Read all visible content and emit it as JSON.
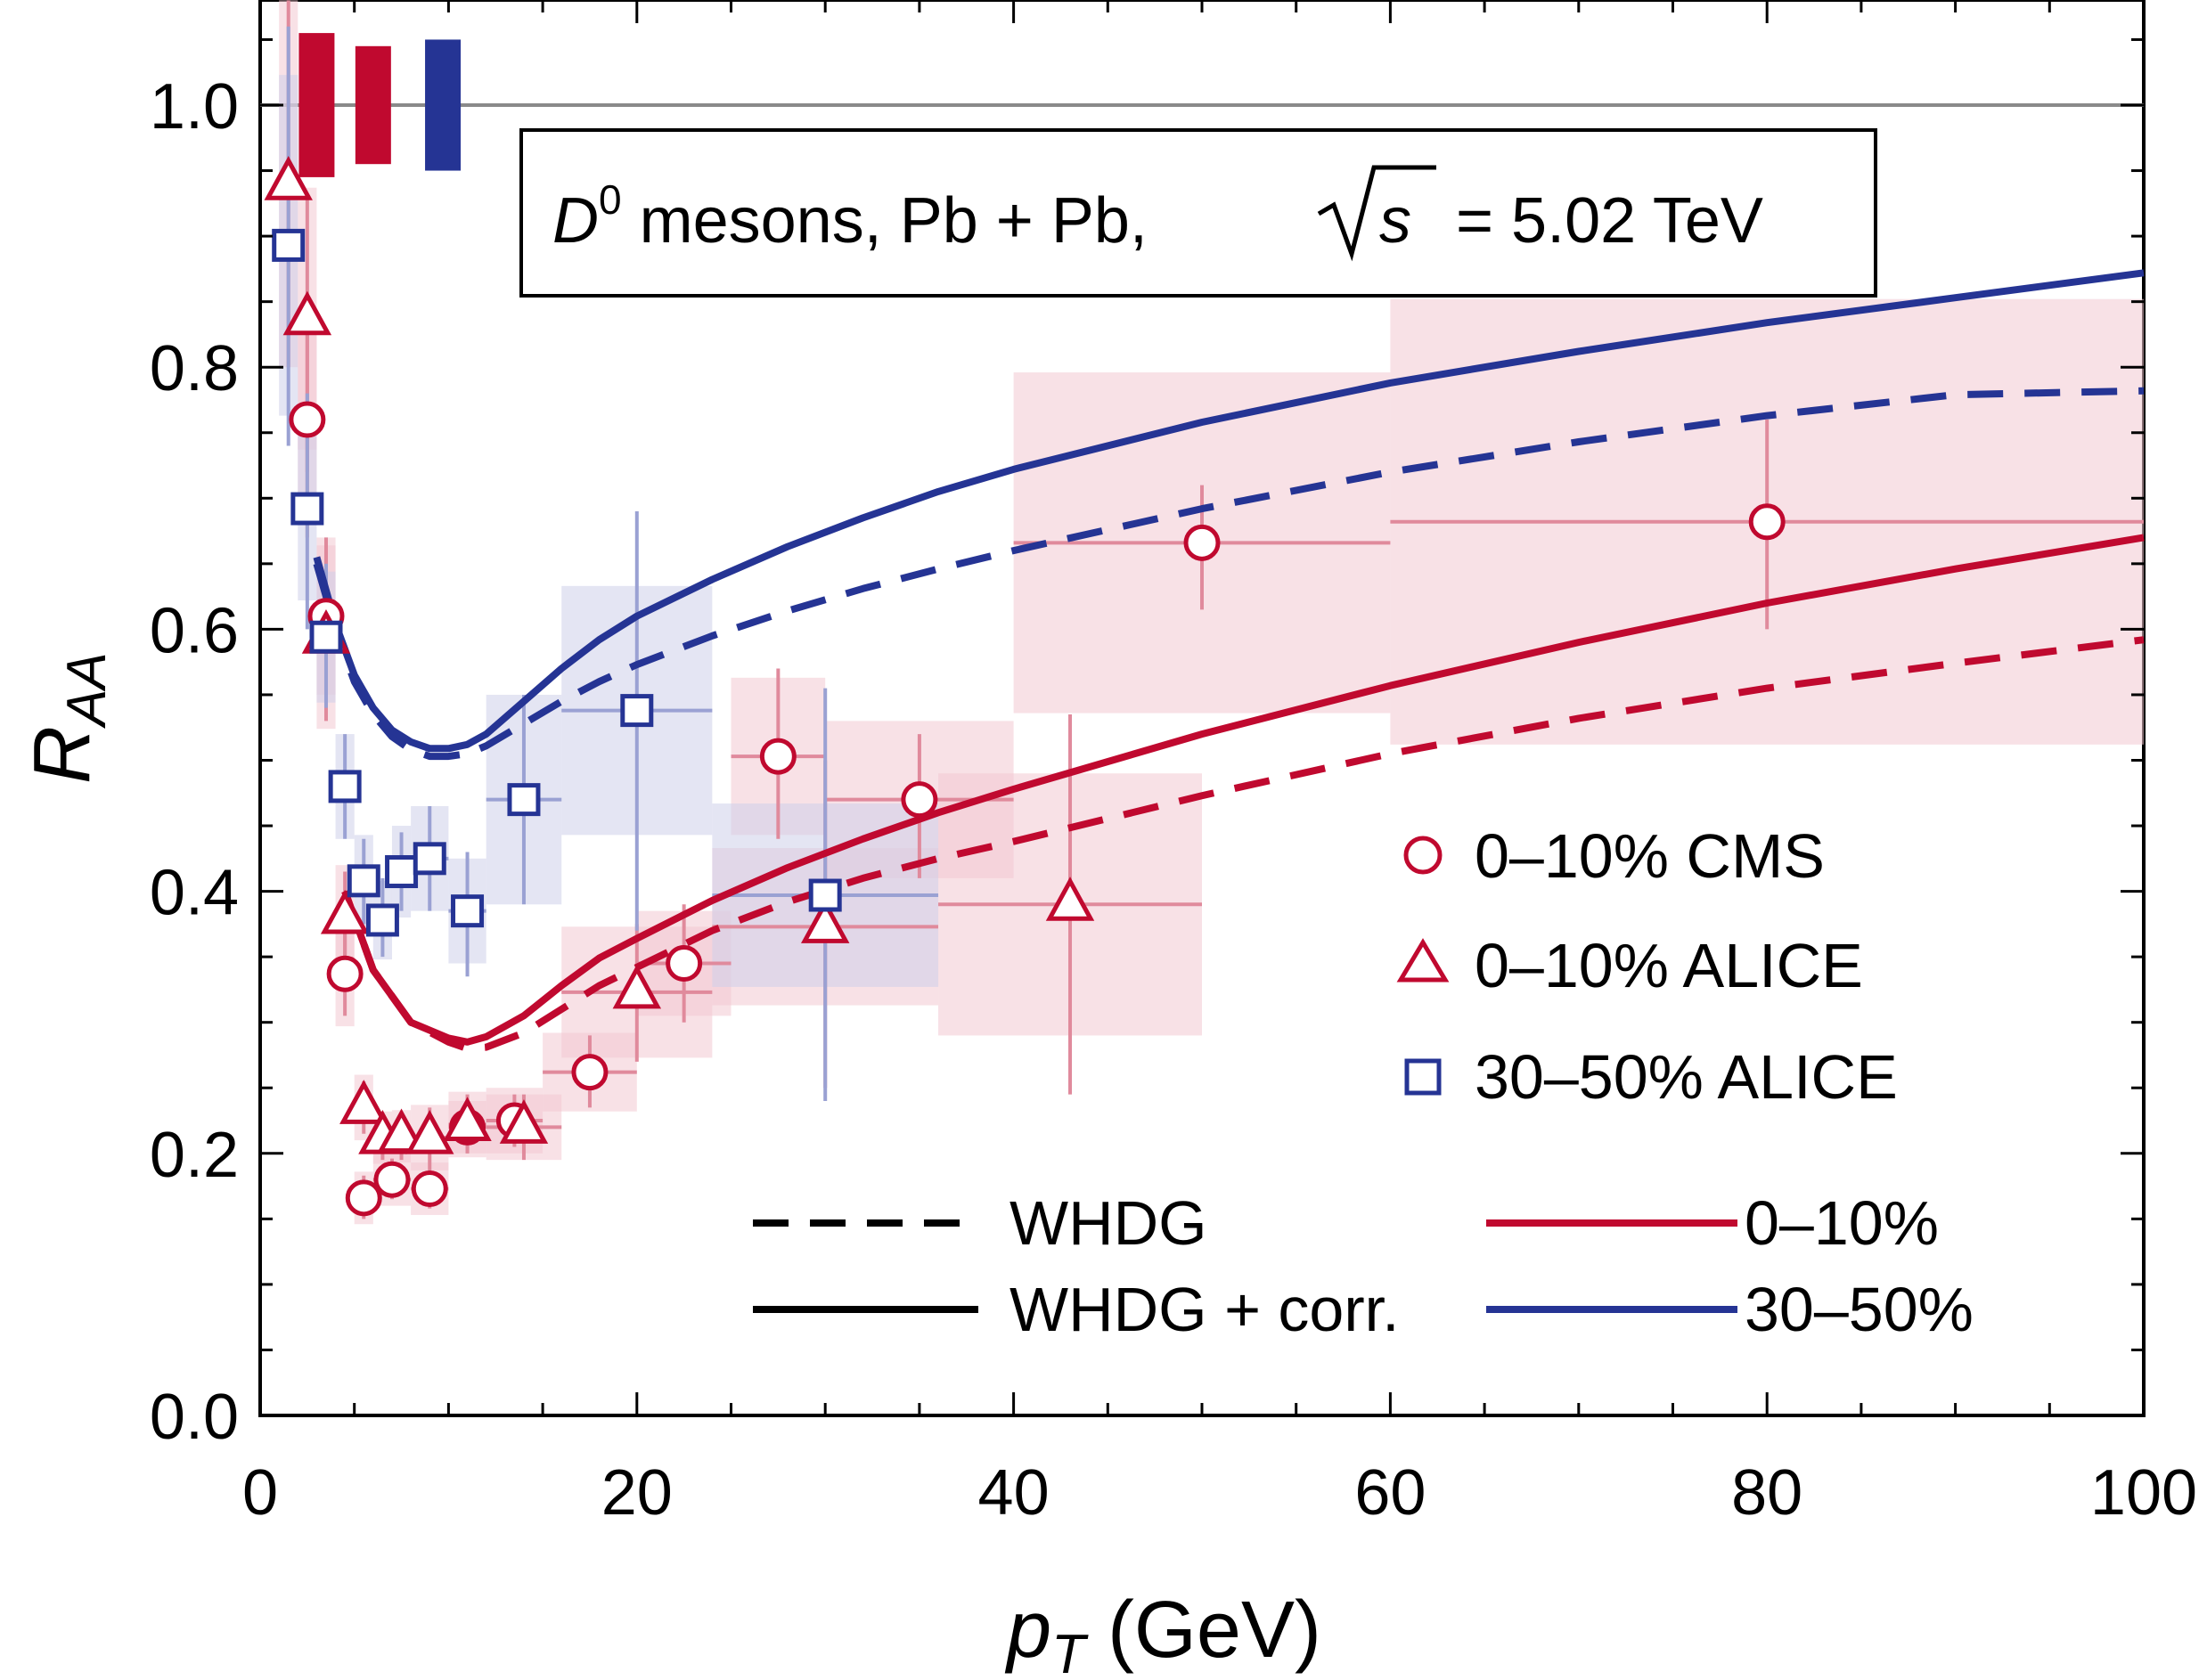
{
  "chart_data": {
    "type": "scatter",
    "title": "D0 mesons, Pb + Pb, √s = 5.02 TeV",
    "title_parts": {
      "particle": "D",
      "particle_superscript": "0",
      "system": " mesons, Pb + Pb, ",
      "sqrt_var": "s",
      "energy": " = 5.02 TeV"
    },
    "xlabel": "p",
    "xlabel_sub": "T",
    "xlabel_unit": " (GeV)",
    "ylabel": "R",
    "ylabel_sub": "AA",
    "xlim": [
      0,
      100
    ],
    "ylim": [
      0,
      1.08
    ],
    "x_ticks": [
      0,
      20,
      40,
      60,
      80,
      100
    ],
    "x_tick_labels": [
      "0",
      "20",
      "40",
      "60",
      "80",
      "100"
    ],
    "y_ticks": [
      0.0,
      0.2,
      0.4,
      0.6,
      0.8,
      1.0
    ],
    "y_tick_labels": [
      "0.0",
      "0.2",
      "0.4",
      "0.6",
      "0.8",
      "1.0"
    ],
    "reference_line": 1.0,
    "colors": {
      "red": "#c0092f",
      "blue": "#253494",
      "red_box": "#f3c9d2",
      "blue_box": "#cdd0ea",
      "red_bar": "#e08a9c",
      "blue_bar": "#9aa1d3"
    },
    "norm_boxes": [
      {
        "color": "red",
        "x": 3.0,
        "y_low": 0.945,
        "y_high": 1.055
      },
      {
        "color": "red",
        "x": 6.0,
        "y_low": 0.955,
        "y_high": 1.045
      },
      {
        "color": "blue",
        "x": 9.7,
        "y_low": 0.95,
        "y_high": 1.05
      }
    ],
    "series": [
      {
        "name": "0–10% CMS",
        "color": "red",
        "marker": "circle",
        "points": [
          {
            "x": 2.5,
            "y": 0.76,
            "ylo": 0.67,
            "yhi": 0.84,
            "xw": 0.5,
            "sys": 0.07
          },
          {
            "x": 3.5,
            "y": 0.61,
            "ylo": 0.54,
            "yhi": 0.67,
            "xw": 0.5,
            "sys": 0.06
          },
          {
            "x": 4.5,
            "y": 0.337,
            "ylo": 0.305,
            "yhi": 0.37,
            "xw": 0.5,
            "sys": 0.04
          },
          {
            "x": 5.5,
            "y": 0.166,
            "ylo": 0.15,
            "yhi": 0.183,
            "xw": 0.5,
            "sys": 0.02
          },
          {
            "x": 7.0,
            "y": 0.18,
            "ylo": 0.165,
            "yhi": 0.196,
            "xw": 1.0,
            "sys": 0.02
          },
          {
            "x": 9.0,
            "y": 0.173,
            "ylo": 0.158,
            "yhi": 0.19,
            "xw": 1.0,
            "sys": 0.02
          },
          {
            "x": 11.0,
            "y": 0.22,
            "ylo": 0.2,
            "yhi": 0.24,
            "xw": 1.0,
            "sys": 0.02
          },
          {
            "x": 13.5,
            "y": 0.225,
            "ylo": 0.205,
            "yhi": 0.245,
            "xw": 1.5,
            "sys": 0.025
          },
          {
            "x": 17.5,
            "y": 0.262,
            "ylo": 0.235,
            "yhi": 0.29,
            "xw": 2.5,
            "sys": 0.03
          },
          {
            "x": 22.5,
            "y": 0.345,
            "ylo": 0.3,
            "yhi": 0.39,
            "xw": 2.5,
            "sys": 0.04
          },
          {
            "x": 27.5,
            "y": 0.503,
            "ylo": 0.44,
            "yhi": 0.57,
            "xw": 2.5,
            "sys": 0.06
          },
          {
            "x": 35.0,
            "y": 0.47,
            "ylo": 0.41,
            "yhi": 0.52,
            "xw": 5.0,
            "sys": 0.06
          },
          {
            "x": 50.0,
            "y": 0.666,
            "ylo": 0.615,
            "yhi": 0.71,
            "xw": 10.0,
            "sys": 0.13
          },
          {
            "x": 80.0,
            "y": 0.682,
            "ylo": 0.6,
            "yhi": 0.76,
            "xw": 20.0,
            "sys": 0.17
          }
        ]
      },
      {
        "name": "0–10% ALICE",
        "color": "red",
        "marker": "triangle",
        "points": [
          {
            "x": 1.5,
            "y": 0.94,
            "ylo": 0.8,
            "yhi": 1.08,
            "xw": 0.5,
            "sys": 0.14
          },
          {
            "x": 2.5,
            "y": 0.837,
            "ylo": 0.72,
            "yhi": 0.93,
            "xw": 0.5,
            "sys": 0.1
          },
          {
            "x": 3.5,
            "y": 0.594,
            "ylo": 0.53,
            "yhi": 0.66,
            "xw": 0.5,
            "sys": 0.07
          },
          {
            "x": 4.5,
            "y": 0.38,
            "ylo": 0.345,
            "yhi": 0.415,
            "xw": 0.5,
            "sys": 0.04
          },
          {
            "x": 5.5,
            "y": 0.235,
            "ylo": 0.215,
            "yhi": 0.255,
            "xw": 0.5,
            "sys": 0.025
          },
          {
            "x": 6.5,
            "y": 0.212,
            "ylo": 0.195,
            "yhi": 0.23,
            "xw": 0.5,
            "sys": 0.02
          },
          {
            "x": 7.5,
            "y": 0.213,
            "ylo": 0.195,
            "yhi": 0.232,
            "xw": 0.5,
            "sys": 0.02
          },
          {
            "x": 9.0,
            "y": 0.212,
            "ylo": 0.19,
            "yhi": 0.235,
            "xw": 1.0,
            "sys": 0.025
          },
          {
            "x": 11.0,
            "y": 0.222,
            "ylo": 0.2,
            "yhi": 0.245,
            "xw": 1.0,
            "sys": 0.025
          },
          {
            "x": 14.0,
            "y": 0.22,
            "ylo": 0.195,
            "yhi": 0.245,
            "xw": 2.0,
            "sys": 0.025
          },
          {
            "x": 20.0,
            "y": 0.323,
            "ylo": 0.27,
            "yhi": 0.375,
            "xw": 4.0,
            "sys": 0.05
          },
          {
            "x": 30.0,
            "y": 0.373,
            "ylo": 0.25,
            "yhi": 0.5,
            "xw": 6.0,
            "sys": 0.06
          },
          {
            "x": 43.0,
            "y": 0.39,
            "ylo": 0.245,
            "yhi": 0.535,
            "xw": 7.0,
            "sys": 0.1
          }
        ]
      },
      {
        "name": "30–50% ALICE",
        "color": "blue",
        "marker": "square",
        "points": [
          {
            "x": 1.5,
            "y": 0.893,
            "ylo": 0.74,
            "yhi": 1.06,
            "xw": 0.5,
            "sys": 0.13
          },
          {
            "x": 2.5,
            "y": 0.692,
            "ylo": 0.6,
            "yhi": 0.78,
            "xw": 0.5,
            "sys": 0.07
          },
          {
            "x": 3.5,
            "y": 0.594,
            "ylo": 0.54,
            "yhi": 0.65,
            "xw": 0.5,
            "sys": 0.05
          },
          {
            "x": 4.5,
            "y": 0.48,
            "ylo": 0.44,
            "yhi": 0.52,
            "xw": 0.5,
            "sys": 0.04
          },
          {
            "x": 5.5,
            "y": 0.408,
            "ylo": 0.375,
            "yhi": 0.44,
            "xw": 0.5,
            "sys": 0.035
          },
          {
            "x": 6.5,
            "y": 0.378,
            "ylo": 0.35,
            "yhi": 0.41,
            "xw": 0.5,
            "sys": 0.03
          },
          {
            "x": 7.5,
            "y": 0.415,
            "ylo": 0.385,
            "yhi": 0.445,
            "xw": 0.5,
            "sys": 0.035
          },
          {
            "x": 9.0,
            "y": 0.425,
            "ylo": 0.385,
            "yhi": 0.465,
            "xw": 1.0,
            "sys": 0.04
          },
          {
            "x": 11.0,
            "y": 0.385,
            "ylo": 0.335,
            "yhi": 0.43,
            "xw": 1.0,
            "sys": 0.04
          },
          {
            "x": 14.0,
            "y": 0.47,
            "ylo": 0.39,
            "yhi": 0.55,
            "xw": 2.0,
            "sys": 0.08
          },
          {
            "x": 20.0,
            "y": 0.538,
            "ylo": 0.37,
            "yhi": 0.69,
            "xw": 4.0,
            "sys": 0.095
          },
          {
            "x": 30.0,
            "y": 0.397,
            "ylo": 0.24,
            "yhi": 0.555,
            "xw": 6.0,
            "sys": 0.07
          }
        ]
      }
    ],
    "curves": [
      {
        "name": "WHDG 0–10%",
        "color": "red",
        "style": "dashed",
        "x": [
          4.5,
          6,
          8,
          10,
          11,
          12,
          14,
          16,
          18,
          20,
          24,
          28,
          32,
          36,
          40,
          50,
          60,
          70,
          80,
          90,
          100
        ],
        "y": [
          0.4,
          0.34,
          0.3,
          0.285,
          0.28,
          0.281,
          0.292,
          0.31,
          0.328,
          0.342,
          0.37,
          0.392,
          0.41,
          0.425,
          0.438,
          0.473,
          0.505,
          0.532,
          0.555,
          0.574,
          0.592
        ]
      },
      {
        "name": "WHDG + corr. 0–10%",
        "color": "red",
        "style": "solid",
        "x": [
          4.5,
          6,
          8,
          10,
          11,
          12,
          14,
          16,
          18,
          20,
          24,
          28,
          32,
          36,
          40,
          50,
          60,
          70,
          80,
          90,
          100
        ],
        "y": [
          0.4,
          0.34,
          0.3,
          0.288,
          0.285,
          0.289,
          0.305,
          0.328,
          0.349,
          0.364,
          0.393,
          0.418,
          0.44,
          0.46,
          0.478,
          0.52,
          0.557,
          0.59,
          0.62,
          0.646,
          0.67
        ]
      },
      {
        "name": "WHDG 30–50%",
        "color": "blue",
        "style": "dashed",
        "x": [
          3,
          4,
          5,
          6,
          7,
          8,
          9,
          10,
          11,
          12,
          14,
          16,
          18,
          20,
          24,
          28,
          32,
          36,
          40,
          50,
          60,
          70,
          80,
          90,
          100
        ],
        "y": [
          0.65,
          0.6,
          0.56,
          0.535,
          0.518,
          0.508,
          0.503,
          0.503,
          0.505,
          0.511,
          0.528,
          0.545,
          0.56,
          0.573,
          0.595,
          0.614,
          0.631,
          0.646,
          0.66,
          0.692,
          0.72,
          0.743,
          0.763,
          0.779,
          0.782
        ]
      },
      {
        "name": "WHDG + corr. 30–50%",
        "color": "blue",
        "style": "solid",
        "x": [
          3,
          4,
          5,
          6,
          7,
          8,
          9,
          10,
          11,
          12,
          14,
          16,
          18,
          20,
          24,
          28,
          32,
          36,
          40,
          50,
          60,
          70,
          80,
          90,
          100
        ],
        "y": [
          0.655,
          0.604,
          0.565,
          0.54,
          0.523,
          0.514,
          0.509,
          0.509,
          0.512,
          0.52,
          0.545,
          0.57,
          0.592,
          0.61,
          0.638,
          0.663,
          0.685,
          0.705,
          0.722,
          0.758,
          0.788,
          0.812,
          0.834,
          0.853,
          0.872
        ]
      }
    ],
    "legend_markers": [
      {
        "label": "0–10% CMS",
        "marker": "circle",
        "color": "red"
      },
      {
        "label": "0–10% ALICE",
        "marker": "triangle",
        "color": "red"
      },
      {
        "label": "30–50% ALICE",
        "marker": "square",
        "color": "blue"
      }
    ],
    "legend_lines": [
      {
        "label": "WHDG",
        "style": "dashed",
        "color": "black"
      },
      {
        "label": "WHDG + corr.",
        "style": "solid",
        "color": "black"
      },
      {
        "label": "0–10%",
        "style": "solid",
        "color": "red"
      },
      {
        "label": "30–50%",
        "style": "solid",
        "color": "blue"
      }
    ]
  }
}
